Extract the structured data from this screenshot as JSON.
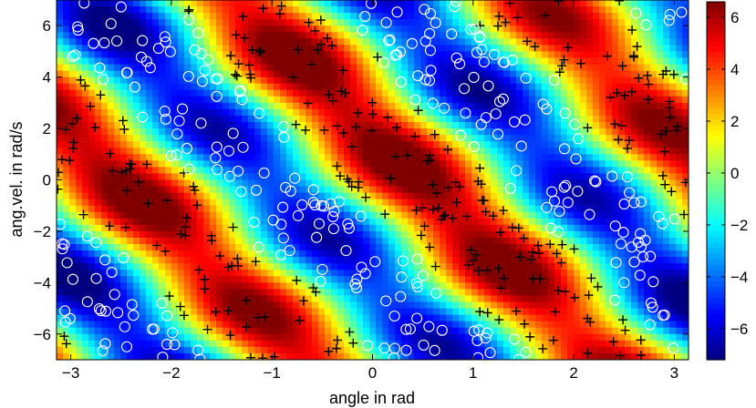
{
  "chart_data": {
    "type": "heatmap",
    "xlabel": "angle in rad",
    "ylabel": "ang.vel. in rad/s",
    "xlim": [
      -3.14159,
      3.14159
    ],
    "ylim": [
      -7,
      7
    ],
    "x_ticks": [
      -3,
      -2,
      -1,
      0,
      1,
      2,
      3
    ],
    "x_tick_labels": [
      "−3",
      "−2",
      "−1",
      "0",
      "1",
      "2",
      "3"
    ],
    "y_ticks": [
      -6,
      -4,
      -2,
      0,
      2,
      4,
      6
    ],
    "y_tick_labels": [
      "−6",
      "−4",
      "−2",
      "0",
      "2",
      "4",
      "6"
    ],
    "colorbar": {
      "range": [
        -7.2,
        6.6
      ],
      "ticks": [
        -6,
        -4,
        -2,
        0,
        2,
        4,
        6
      ],
      "tick_labels": [
        "−6",
        "−4",
        "−2",
        "0",
        "2",
        "4",
        "6"
      ],
      "colormap": "jet"
    },
    "markers": {
      "plus": {
        "symbol": "+",
        "color": "#000000"
      },
      "circle": {
        "symbol": "o",
        "color": "#ffffff"
      }
    }
  }
}
